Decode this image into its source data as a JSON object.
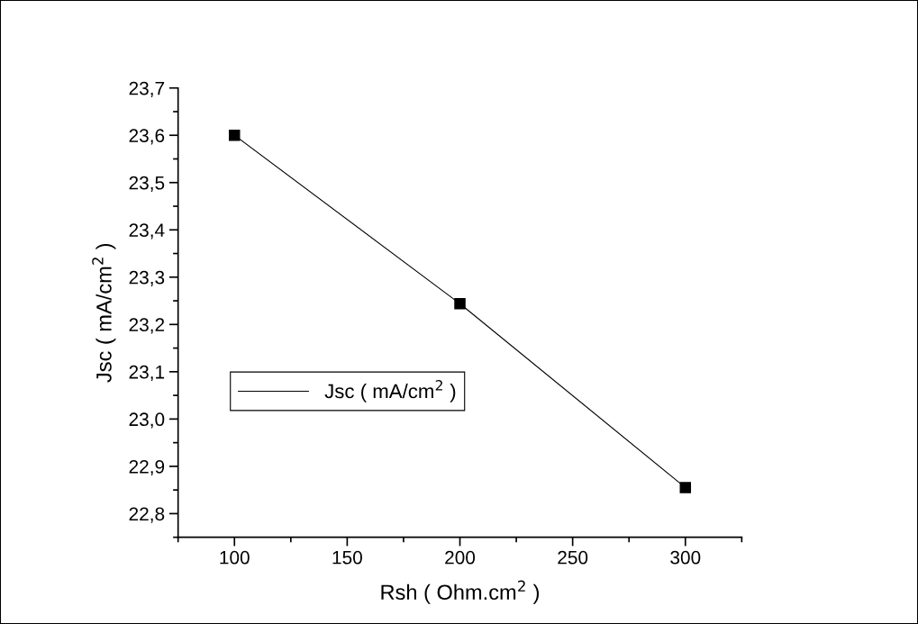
{
  "chart_data": {
    "type": "line",
    "xlabel": "Rsh ( Ohm.cm$^{2}$ )",
    "ylabel": "Jsc ( mA/cm$^{2}$ )",
    "x": [
      100,
      200,
      300
    ],
    "series": [
      {
        "name": "Jsc ( mA/cm$^{2}$ )",
        "color": "#000000",
        "values": [
          23.6,
          23.244,
          22.855
        ]
      }
    ],
    "marker": "square",
    "line_style": "solid",
    "legend": "left",
    "grid": false,
    "xlim": [
      75,
      325
    ],
    "xticks": [
      {
        "value": 75,
        "label": null
      },
      100,
      {
        "value": 125,
        "label": null
      },
      150,
      {
        "value": 175,
        "label": null
      },
      200,
      {
        "value": 225,
        "label": null
      },
      250,
      {
        "value": 275,
        "label": null
      },
      300,
      {
        "value": 325,
        "label": null
      }
    ],
    "ylim": [
      22.75,
      23.7
    ],
    "yticks": [
      {
        "value": 22.75,
        "label": null
      },
      {
        "value": 22.8,
        "label": "22,8"
      },
      {
        "value": 22.85,
        "label": null
      },
      {
        "value": 22.9,
        "label": "22,9"
      },
      {
        "value": 22.95,
        "label": null
      },
      {
        "value": 23.0,
        "label": "23,0"
      },
      {
        "value": 23.05,
        "label": null
      },
      {
        "value": 23.1,
        "label": "23,1"
      },
      {
        "value": 23.15,
        "label": null
      },
      {
        "value": 23.2,
        "label": "23,2"
      },
      {
        "value": 23.25,
        "label": null
      },
      {
        "value": 23.3,
        "label": "23,3"
      },
      {
        "value": 23.35,
        "label": null
      },
      {
        "value": 23.4,
        "label": "23,4"
      },
      {
        "value": 23.45,
        "label": null
      },
      {
        "value": 23.5,
        "label": "23,5"
      },
      {
        "value": 23.55,
        "label": null
      },
      {
        "value": 23.6,
        "label": "23,6"
      },
      {
        "value": 23.65,
        "label": null
      },
      {
        "value": 23.7,
        "label": "23,7"
      }
    ]
  }
}
